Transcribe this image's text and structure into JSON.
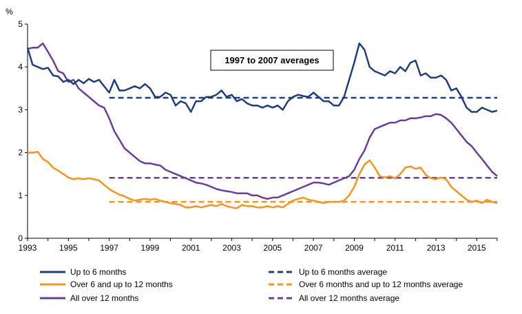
{
  "chart_data": {
    "type": "line",
    "ylabel": "%",
    "xlim": [
      1993,
      2016
    ],
    "ylim": [
      0,
      5
    ],
    "x_ticks": [
      "1993",
      "1995",
      "1997",
      "1999",
      "2001",
      "2003",
      "2005",
      "2007",
      "2009",
      "2011",
      "2013",
      "2015"
    ],
    "y_ticks": [
      "0",
      "1",
      "2",
      "3",
      "4",
      "5"
    ],
    "grid": false,
    "legend_position": "bottom",
    "annotation": "1997 to 2007 averages",
    "series": [
      {
        "name": "Up to 6 months",
        "color": "#1f3d7a",
        "dashed": false,
        "x": [
          1993.0,
          1993.25,
          1993.5,
          1993.75,
          1994.0,
          1994.25,
          1994.5,
          1994.75,
          1995.0,
          1995.25,
          1995.5,
          1995.75,
          1996.0,
          1996.25,
          1996.5,
          1996.75,
          1997.0,
          1997.25,
          1997.5,
          1997.75,
          1998.0,
          1998.25,
          1998.5,
          1998.75,
          1999.0,
          1999.25,
          1999.5,
          1999.75,
          2000.0,
          2000.25,
          2000.5,
          2000.75,
          2001.0,
          2001.25,
          2001.5,
          2001.75,
          2002.0,
          2002.25,
          2002.5,
          2002.75,
          2003.0,
          2003.25,
          2003.5,
          2003.75,
          2004.0,
          2004.25,
          2004.5,
          2004.75,
          2005.0,
          2005.25,
          2005.5,
          2005.75,
          2006.0,
          2006.25,
          2006.5,
          2006.75,
          2007.0,
          2007.25,
          2007.5,
          2007.75,
          2008.0,
          2008.25,
          2008.5,
          2008.75,
          2009.0,
          2009.25,
          2009.5,
          2009.75,
          2010.0,
          2010.25,
          2010.5,
          2010.75,
          2011.0,
          2011.25,
          2011.5,
          2011.75,
          2012.0,
          2012.25,
          2012.5,
          2012.75,
          2013.0,
          2013.25,
          2013.5,
          2013.75,
          2014.0,
          2014.25,
          2014.5,
          2014.75,
          2015.0,
          2015.25,
          2015.5,
          2015.75,
          2016.0
        ],
        "values": [
          4.45,
          4.05,
          4.0,
          3.95,
          3.98,
          3.8,
          3.78,
          3.65,
          3.7,
          3.6,
          3.7,
          3.62,
          3.72,
          3.65,
          3.7,
          3.55,
          3.4,
          3.7,
          3.45,
          3.45,
          3.5,
          3.55,
          3.5,
          3.6,
          3.5,
          3.3,
          3.3,
          3.4,
          3.35,
          3.1,
          3.2,
          3.15,
          2.95,
          3.2,
          3.2,
          3.3,
          3.3,
          3.35,
          3.45,
          3.3,
          3.35,
          3.2,
          3.25,
          3.15,
          3.1,
          3.1,
          3.05,
          3.1,
          3.05,
          3.1,
          3.0,
          3.2,
          3.3,
          3.35,
          3.32,
          3.3,
          3.4,
          3.3,
          3.2,
          3.2,
          3.1,
          3.1,
          3.3,
          3.7,
          4.1,
          4.55,
          4.4,
          4.0,
          3.9,
          3.85,
          3.8,
          3.9,
          3.85,
          4.0,
          3.9,
          4.1,
          4.15,
          3.8,
          3.85,
          3.75,
          3.75,
          3.8,
          3.7,
          3.45,
          3.5,
          3.3,
          3.05,
          2.95,
          2.95,
          3.05,
          3.0,
          2.95,
          2.98
        ]
      },
      {
        "name": "Over 6 and up to 12 months",
        "color": "#f7941d",
        "dashed": false,
        "x": [
          1993.0,
          1993.25,
          1993.5,
          1993.75,
          1994.0,
          1994.25,
          1994.5,
          1994.75,
          1995.0,
          1995.25,
          1995.5,
          1995.75,
          1996.0,
          1996.25,
          1996.5,
          1996.75,
          1997.0,
          1997.25,
          1997.5,
          1997.75,
          1998.0,
          1998.25,
          1998.5,
          1998.75,
          1999.0,
          1999.25,
          1999.5,
          1999.75,
          2000.0,
          2000.25,
          2000.5,
          2000.75,
          2001.0,
          2001.25,
          2001.5,
          2001.75,
          2002.0,
          2002.25,
          2002.5,
          2002.75,
          2003.0,
          2003.25,
          2003.5,
          2003.75,
          2004.0,
          2004.25,
          2004.5,
          2004.75,
          2005.0,
          2005.25,
          2005.5,
          2005.75,
          2006.0,
          2006.25,
          2006.5,
          2006.75,
          2007.0,
          2007.25,
          2007.5,
          2007.75,
          2008.0,
          2008.25,
          2008.5,
          2008.75,
          2009.0,
          2009.25,
          2009.5,
          2009.75,
          2010.0,
          2010.25,
          2010.5,
          2010.75,
          2011.0,
          2011.25,
          2011.5,
          2011.75,
          2012.0,
          2012.25,
          2012.5,
          2012.75,
          2013.0,
          2013.25,
          2013.5,
          2013.75,
          2014.0,
          2014.25,
          2014.5,
          2014.75,
          2015.0,
          2015.25,
          2015.5,
          2015.75,
          2016.0
        ],
        "values": [
          2.0,
          2.0,
          2.02,
          1.85,
          1.78,
          1.65,
          1.58,
          1.5,
          1.42,
          1.38,
          1.4,
          1.38,
          1.4,
          1.38,
          1.35,
          1.25,
          1.15,
          1.08,
          1.02,
          0.98,
          0.92,
          0.88,
          0.9,
          0.92,
          0.9,
          0.92,
          0.88,
          0.85,
          0.82,
          0.8,
          0.78,
          0.72,
          0.72,
          0.75,
          0.72,
          0.75,
          0.78,
          0.75,
          0.8,
          0.75,
          0.72,
          0.7,
          0.78,
          0.75,
          0.75,
          0.72,
          0.72,
          0.75,
          0.72,
          0.75,
          0.72,
          0.8,
          0.88,
          0.92,
          0.95,
          0.9,
          0.88,
          0.85,
          0.82,
          0.85,
          0.85,
          0.85,
          0.88,
          1.0,
          1.2,
          1.5,
          1.72,
          1.82,
          1.65,
          1.45,
          1.42,
          1.45,
          1.4,
          1.5,
          1.65,
          1.68,
          1.62,
          1.65,
          1.48,
          1.4,
          1.38,
          1.42,
          1.38,
          1.2,
          1.1,
          1.0,
          0.9,
          0.85,
          0.88,
          0.82,
          0.9,
          0.85,
          0.82
        ]
      },
      {
        "name": "All over 12 months",
        "color": "#6a3d9a",
        "dashed": false,
        "x": [
          1993.0,
          1993.25,
          1993.5,
          1993.75,
          1994.0,
          1994.25,
          1994.5,
          1994.75,
          1995.0,
          1995.25,
          1995.5,
          1995.75,
          1996.0,
          1996.25,
          1996.5,
          1996.75,
          1997.0,
          1997.25,
          1997.5,
          1997.75,
          1998.0,
          1998.25,
          1998.5,
          1998.75,
          1999.0,
          1999.25,
          1999.5,
          1999.75,
          2000.0,
          2000.25,
          2000.5,
          2000.75,
          2001.0,
          2001.25,
          2001.5,
          2001.75,
          2002.0,
          2002.25,
          2002.5,
          2002.75,
          2003.0,
          2003.25,
          2003.5,
          2003.75,
          2004.0,
          2004.25,
          2004.5,
          2004.75,
          2005.0,
          2005.25,
          2005.5,
          2005.75,
          2006.0,
          2006.25,
          2006.5,
          2006.75,
          2007.0,
          2007.25,
          2007.5,
          2007.75,
          2008.0,
          2008.25,
          2008.5,
          2008.75,
          2009.0,
          2009.25,
          2009.5,
          2009.75,
          2010.0,
          2010.25,
          2010.5,
          2010.75,
          2011.0,
          2011.25,
          2011.5,
          2011.75,
          2012.0,
          2012.25,
          2012.5,
          2012.75,
          2013.0,
          2013.25,
          2013.5,
          2013.75,
          2014.0,
          2014.25,
          2014.5,
          2014.75,
          2015.0,
          2015.25,
          2015.5,
          2015.75,
          2016.0
        ],
        "values": [
          4.42,
          4.45,
          4.45,
          4.55,
          4.35,
          4.15,
          3.9,
          3.85,
          3.65,
          3.7,
          3.5,
          3.4,
          3.3,
          3.2,
          3.1,
          3.05,
          2.8,
          2.5,
          2.3,
          2.1,
          2.0,
          1.9,
          1.8,
          1.75,
          1.75,
          1.72,
          1.7,
          1.6,
          1.55,
          1.5,
          1.45,
          1.4,
          1.35,
          1.3,
          1.28,
          1.25,
          1.2,
          1.15,
          1.12,
          1.1,
          1.08,
          1.05,
          1.05,
          1.05,
          1.0,
          1.0,
          0.95,
          0.92,
          0.95,
          0.95,
          1.0,
          1.05,
          1.1,
          1.15,
          1.2,
          1.25,
          1.3,
          1.3,
          1.28,
          1.25,
          1.3,
          1.35,
          1.4,
          1.45,
          1.6,
          1.85,
          2.05,
          2.35,
          2.55,
          2.6,
          2.65,
          2.7,
          2.7,
          2.75,
          2.75,
          2.8,
          2.8,
          2.82,
          2.85,
          2.85,
          2.9,
          2.88,
          2.8,
          2.7,
          2.55,
          2.4,
          2.25,
          2.15,
          2.0,
          1.85,
          1.7,
          1.55,
          1.45
        ]
      },
      {
        "name": "Up to 6 months average",
        "color": "#1f3d7a",
        "dashed": true,
        "x": [
          1997.0,
          2016.0
        ],
        "values": [
          3.28,
          3.28
        ]
      },
      {
        "name": "Over 6 months and up to 12 months average",
        "color": "#f7941d",
        "dashed": true,
        "x": [
          1997.0,
          2016.0
        ],
        "values": [
          0.85,
          0.85
        ]
      },
      {
        "name": "All over 12 months average",
        "color": "#6a3d9a",
        "dashed": true,
        "x": [
          1997.0,
          2016.0
        ],
        "values": [
          1.41,
          1.41
        ]
      }
    ]
  }
}
